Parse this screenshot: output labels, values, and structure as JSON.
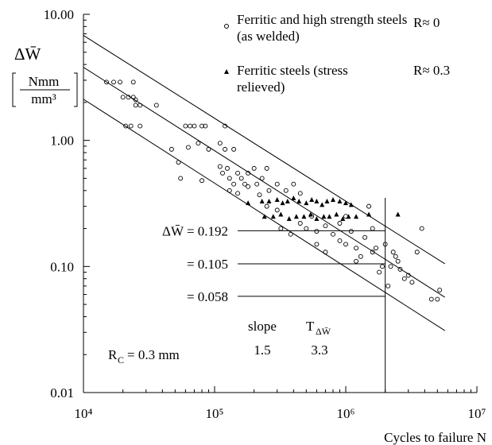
{
  "chart_data": {
    "type": "scatter",
    "log_x": true,
    "log_y": true,
    "xlim": [
      10000,
      10000000
    ],
    "ylim": [
      0.01,
      10
    ],
    "xticks": [
      {
        "value": 10000,
        "label": "10⁴"
      },
      {
        "value": 100000,
        "label": "10⁵"
      },
      {
        "value": 1000000,
        "label": "10⁶"
      },
      {
        "value": 10000000,
        "label": "10⁷"
      }
    ],
    "yticks": [
      {
        "value": 0.01,
        "label": "0.01"
      },
      {
        "value": 0.1,
        "label": "0.10"
      },
      {
        "value": 1,
        "label": "1.00"
      },
      {
        "value": 10,
        "label": "10.00"
      }
    ],
    "x_label": "Cycles to failure N",
    "y_label": "ΔW̄",
    "y_unit_top": "Nmm",
    "y_unit_bottom": "mm³",
    "series": [
      {
        "name": "Ferritic and high strength steels (as welded)",
        "r_label": "R≈ 0",
        "marker": "circle",
        "color": "#000000",
        "x": [
          15000,
          17000,
          19000,
          20000,
          22000,
          24000,
          24000,
          25000,
          27000,
          21000,
          23000,
          27000,
          36000,
          25000,
          60000,
          65000,
          70000,
          80000,
          85000,
          120000,
          47000,
          63000,
          75000,
          90000,
          110000,
          120000,
          140000,
          55000,
          53000,
          80000,
          110000,
          115000,
          125000,
          130000,
          140000,
          150000,
          160000,
          170000,
          180000,
          200000,
          230000,
          250000,
          130000,
          150000,
          180000,
          210000,
          260000,
          300000,
          350000,
          400000,
          450000,
          220000,
          250000,
          300000,
          320000,
          380000,
          450000,
          500000,
          550000,
          600000,
          700000,
          800000,
          900000,
          1000000,
          1100000,
          1200000,
          1300000,
          1400000,
          1600000,
          1700000,
          1900000,
          2200000,
          2400000,
          2600000,
          2800000,
          3000000,
          3200000,
          3500000,
          3800000,
          4500000,
          5000000,
          5200000,
          600000,
          700000,
          900000,
          1000000,
          1500000,
          1200000,
          2000000,
          2300000,
          1800000,
          2100000,
          2500000,
          1600000
        ],
        "values": [
          2.9,
          2.9,
          2.9,
          2.2,
          2.2,
          2.2,
          2.9,
          1.9,
          1.9,
          1.3,
          1.3,
          1.3,
          1.9,
          2.1,
          1.3,
          1.3,
          1.3,
          1.3,
          1.3,
          1.3,
          0.85,
          0.88,
          0.95,
          0.85,
          0.95,
          0.85,
          0.85,
          0.5,
          0.67,
          0.48,
          0.62,
          0.55,
          0.6,
          0.5,
          0.45,
          0.55,
          0.5,
          0.45,
          0.55,
          0.6,
          0.5,
          0.6,
          0.4,
          0.38,
          0.43,
          0.45,
          0.4,
          0.45,
          0.4,
          0.45,
          0.38,
          0.37,
          0.3,
          0.28,
          0.2,
          0.18,
          0.22,
          0.2,
          0.25,
          0.19,
          0.21,
          0.18,
          0.22,
          0.15,
          0.19,
          0.14,
          0.12,
          0.17,
          0.13,
          0.14,
          0.1,
          0.1,
          0.12,
          0.095,
          0.08,
          0.085,
          0.075,
          0.13,
          0.2,
          0.055,
          0.055,
          0.065,
          0.15,
          0.13,
          0.16,
          0.25,
          0.3,
          0.11,
          0.15,
          0.13,
          0.09,
          0.07,
          0.11,
          0.2
        ]
      },
      {
        "name": "Ferritic steels (stress relieved)",
        "r_label": "R≈ 0.3",
        "marker": "triangle",
        "color": "#000000",
        "x": [
          180000,
          230000,
          260000,
          300000,
          330000,
          360000,
          400000,
          440000,
          500000,
          550000,
          600000,
          660000,
          720000,
          800000,
          900000,
          1000000,
          1100000,
          240000,
          280000,
          320000,
          370000,
          420000,
          480000,
          540000,
          600000,
          680000,
          750000,
          850000,
          950000,
          1050000,
          1200000,
          1500000,
          2500000
        ],
        "values": [
          0.32,
          0.33,
          0.33,
          0.34,
          0.32,
          0.33,
          0.35,
          0.33,
          0.32,
          0.34,
          0.33,
          0.31,
          0.33,
          0.34,
          0.33,
          0.32,
          0.31,
          0.25,
          0.25,
          0.26,
          0.24,
          0.25,
          0.25,
          0.26,
          0.24,
          0.25,
          0.25,
          0.26,
          0.24,
          0.25,
          0.25,
          0.26,
          0.26
        ]
      }
    ],
    "fit_lines": [
      {
        "x": [
          10000,
          5700000
        ],
        "y": [
          6.8,
          0.105
        ]
      },
      {
        "x": [
          10000,
          5700000
        ],
        "y": [
          3.8,
          0.057
        ]
      },
      {
        "x": [
          10000,
          5700000
        ],
        "y": [
          2.12,
          0.031
        ]
      }
    ],
    "vline_x": 2000000,
    "reference_lines": [
      {
        "value": 0.192,
        "label": "ΔW̄ = 0.192",
        "x_from": 150000
      },
      {
        "value": 0.105,
        "label": "= 0.105",
        "x_from": 150000
      },
      {
        "value": 0.058,
        "label": "= 0.058",
        "x_from": 150000
      }
    ],
    "annotations": {
      "slope_title": "slope",
      "slope_value": "1.5",
      "t_title": "T",
      "t_sub": "ΔW̄",
      "t_value": "3.3",
      "rc": "R",
      "rc_sub": "C",
      "rc_value": "= 0.3 mm"
    }
  }
}
